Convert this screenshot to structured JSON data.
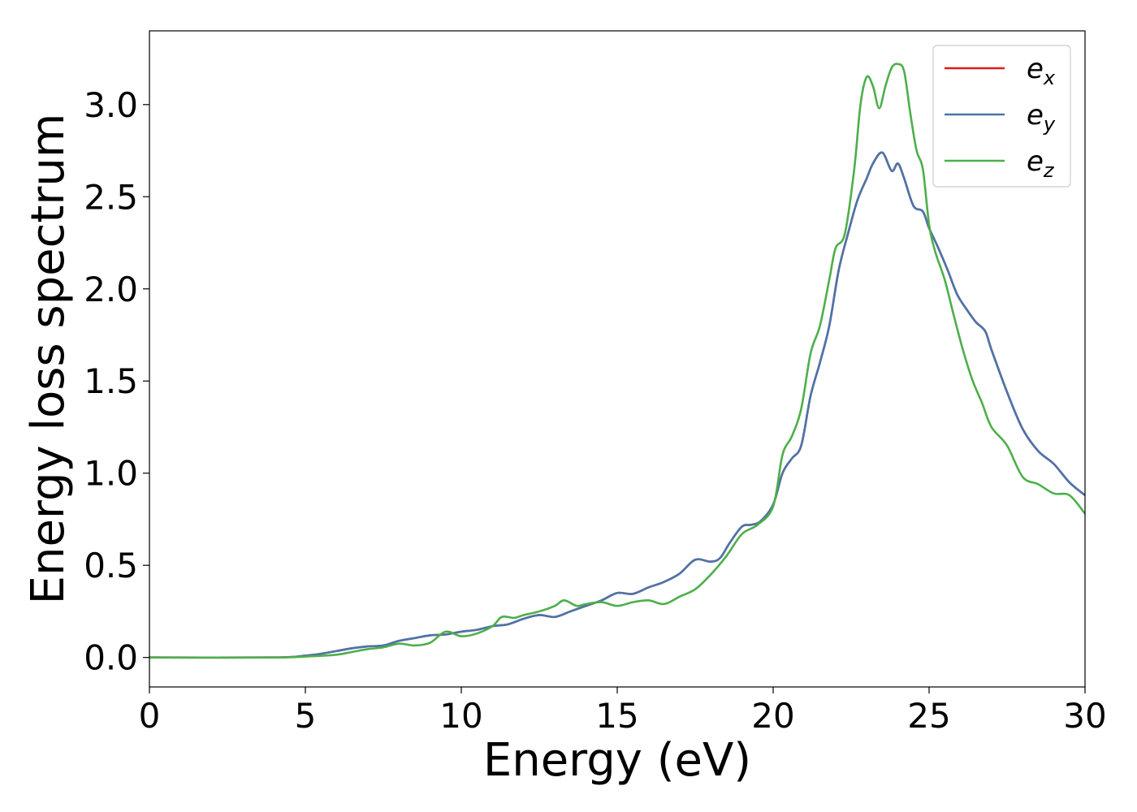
{
  "chart_data": {
    "type": "line",
    "xlabel": "Energy (eV)",
    "ylabel": "Energy loss spectrum",
    "xlim": [
      0,
      30
    ],
    "ylim": [
      -0.16,
      3.4
    ],
    "xticks": [
      0,
      5,
      10,
      15,
      20,
      25,
      30
    ],
    "xtick_labels": [
      "0",
      "5",
      "10",
      "15",
      "20",
      "25",
      "30"
    ],
    "yticks": [
      0.0,
      0.5,
      1.0,
      1.5,
      2.0,
      2.5,
      3.0
    ],
    "ytick_labels": [
      "0.0",
      "0.5",
      "1.0",
      "1.5",
      "2.0",
      "2.5",
      "3.0"
    ],
    "grid": false,
    "legend_position": "top-right",
    "series": [
      {
        "name": "e",
        "subscript": "x",
        "color": "#e41a1c",
        "x": [
          0,
          4,
          5,
          5.5,
          6,
          6.5,
          7,
          7.5,
          8,
          8.5,
          9,
          9.5,
          10,
          10.5,
          11,
          11.5,
          12,
          12.5,
          13,
          13.5,
          14,
          14.5,
          15,
          15.5,
          16,
          16.5,
          17,
          17.5,
          18,
          18.3,
          18.6,
          19,
          19.3,
          19.6,
          20,
          20.3,
          20.6,
          20.9,
          21.2,
          21.5,
          21.8,
          22.1,
          22.4,
          22.7,
          23,
          23.2,
          23.5,
          23.8,
          24,
          24.2,
          24.5,
          24.8,
          25,
          25.3,
          25.6,
          25.9,
          26.2,
          26.5,
          26.8,
          27,
          27.5,
          28,
          28.5,
          29,
          29.5,
          30
        ],
        "y": [
          0,
          0,
          0.01,
          0.02,
          0.035,
          0.05,
          0.06,
          0.065,
          0.09,
          0.105,
          0.12,
          0.125,
          0.14,
          0.15,
          0.17,
          0.18,
          0.21,
          0.23,
          0.22,
          0.25,
          0.28,
          0.31,
          0.35,
          0.345,
          0.38,
          0.41,
          0.455,
          0.53,
          0.52,
          0.54,
          0.62,
          0.71,
          0.72,
          0.74,
          0.83,
          1.0,
          1.08,
          1.15,
          1.42,
          1.6,
          1.8,
          2.1,
          2.3,
          2.48,
          2.6,
          2.68,
          2.74,
          2.64,
          2.68,
          2.6,
          2.45,
          2.42,
          2.33,
          2.22,
          2.1,
          1.97,
          1.89,
          1.82,
          1.77,
          1.67,
          1.44,
          1.24,
          1.12,
          1.05,
          0.95,
          0.88
        ]
      },
      {
        "name": "e",
        "subscript": "y",
        "color": "#4a75aa",
        "x": [
          0,
          4,
          5,
          5.5,
          6,
          6.5,
          7,
          7.5,
          8,
          8.5,
          9,
          9.5,
          10,
          10.5,
          11,
          11.5,
          12,
          12.5,
          13,
          13.5,
          14,
          14.5,
          15,
          15.5,
          16,
          16.5,
          17,
          17.5,
          18,
          18.3,
          18.6,
          19,
          19.3,
          19.6,
          20,
          20.3,
          20.6,
          20.9,
          21.2,
          21.5,
          21.8,
          22.1,
          22.4,
          22.7,
          23,
          23.2,
          23.5,
          23.8,
          24,
          24.2,
          24.5,
          24.8,
          25,
          25.3,
          25.6,
          25.9,
          26.2,
          26.5,
          26.8,
          27,
          27.5,
          28,
          28.5,
          29,
          29.5,
          30
        ],
        "y": [
          0,
          0,
          0.01,
          0.02,
          0.035,
          0.05,
          0.06,
          0.065,
          0.09,
          0.105,
          0.12,
          0.125,
          0.14,
          0.15,
          0.17,
          0.18,
          0.21,
          0.23,
          0.22,
          0.25,
          0.28,
          0.31,
          0.35,
          0.345,
          0.38,
          0.41,
          0.455,
          0.53,
          0.52,
          0.54,
          0.62,
          0.71,
          0.72,
          0.74,
          0.83,
          1.0,
          1.08,
          1.15,
          1.42,
          1.6,
          1.8,
          2.1,
          2.3,
          2.48,
          2.6,
          2.68,
          2.74,
          2.64,
          2.68,
          2.6,
          2.45,
          2.42,
          2.33,
          2.22,
          2.1,
          1.97,
          1.89,
          1.82,
          1.77,
          1.67,
          1.44,
          1.24,
          1.12,
          1.05,
          0.95,
          0.88
        ]
      },
      {
        "name": "e",
        "subscript": "z",
        "color": "#4daf4a",
        "x": [
          0,
          4,
          5,
          6,
          6.5,
          7,
          7.5,
          8,
          8.5,
          9,
          9.5,
          10,
          10.5,
          11,
          11.3,
          11.7,
          12,
          12.5,
          13,
          13.3,
          13.7,
          14,
          14.5,
          15,
          15.5,
          16,
          16.5,
          17,
          17.5,
          18,
          18.5,
          19,
          19.5,
          20,
          20.3,
          20.6,
          20.9,
          21.2,
          21.5,
          21.8,
          22,
          22.3,
          22.6,
          22.8,
          23,
          23.2,
          23.4,
          23.6,
          23.8,
          24,
          24.2,
          24.4,
          24.6,
          24.8,
          25,
          25.2,
          25.5,
          25.8,
          26.1,
          26.4,
          26.7,
          27,
          27.5,
          28,
          28.5,
          29,
          29.5,
          30
        ],
        "y": [
          0,
          0,
          0.005,
          0.015,
          0.03,
          0.045,
          0.055,
          0.075,
          0.065,
          0.08,
          0.14,
          0.115,
          0.13,
          0.17,
          0.22,
          0.215,
          0.23,
          0.25,
          0.28,
          0.31,
          0.28,
          0.29,
          0.3,
          0.28,
          0.3,
          0.31,
          0.29,
          0.33,
          0.37,
          0.45,
          0.55,
          0.67,
          0.72,
          0.82,
          1.1,
          1.2,
          1.35,
          1.65,
          1.8,
          2.05,
          2.22,
          2.3,
          2.65,
          3.0,
          3.15,
          3.1,
          2.98,
          3.1,
          3.2,
          3.22,
          3.18,
          2.95,
          2.75,
          2.65,
          2.35,
          2.2,
          2.05,
          1.85,
          1.66,
          1.5,
          1.38,
          1.25,
          1.15,
          0.98,
          0.94,
          0.89,
          0.88,
          0.78
        ]
      }
    ]
  }
}
